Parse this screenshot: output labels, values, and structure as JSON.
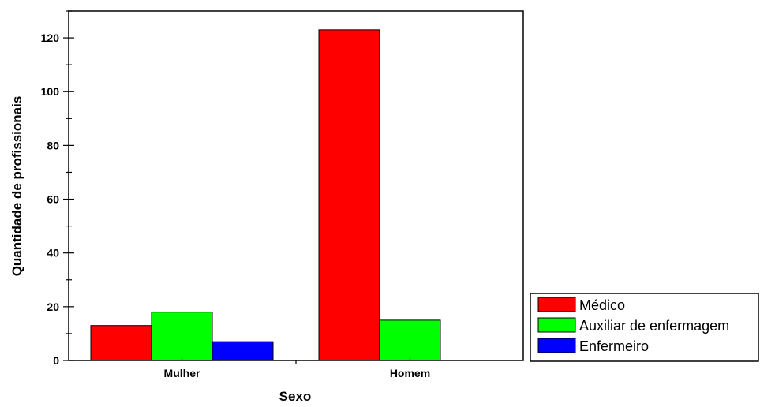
{
  "chart_data": {
    "type": "bar",
    "title": "",
    "xlabel": "Sexo",
    "ylabel": "Quantidade de profissionais",
    "categories": [
      "Mulher",
      "Homem"
    ],
    "series": [
      {
        "name": "Médico",
        "color": "#ff0000",
        "values": [
          13,
          123
        ]
      },
      {
        "name": "Auxiliar de enfermagem",
        "color": "#00ff00",
        "values": [
          18,
          15
        ]
      },
      {
        "name": "Enfermeiro",
        "color": "#0000ff",
        "values": [
          7,
          0
        ]
      }
    ],
    "ylim": [
      0,
      130
    ],
    "yticks": [
      0,
      20,
      40,
      60,
      80,
      100,
      120
    ],
    "grid": false,
    "legend_position": "bottom-right"
  }
}
